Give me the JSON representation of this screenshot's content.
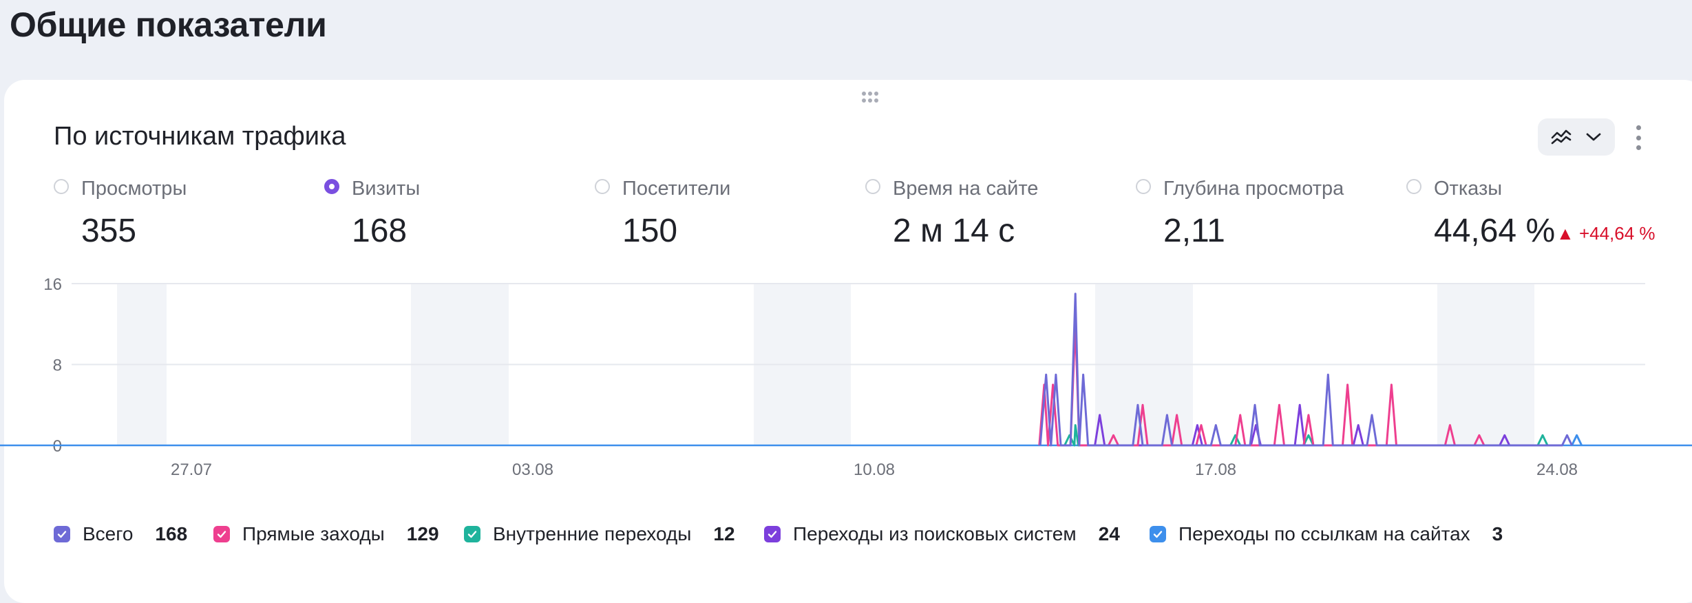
{
  "page": {
    "title": "Общие показатели"
  },
  "card": {
    "title": "По источникам трафика",
    "chart_type_icon": "area-lines-icon",
    "menu_icon": "more-vertical-icon"
  },
  "metrics": [
    {
      "label": "Просмотры",
      "value": "355",
      "selected": false
    },
    {
      "label": "Визиты",
      "value": "168",
      "selected": true
    },
    {
      "label": "Посетители",
      "value": "150",
      "selected": false
    },
    {
      "label": "Время на сайте",
      "value": "2 м 14 с",
      "selected": false
    },
    {
      "label": "Глубина просмотра",
      "value": "2,11",
      "selected": false
    },
    {
      "label": "Отказы",
      "value": "44,64 %",
      "selected": false,
      "delta": "▲ +44,64 %",
      "delta_color": "#d80f2a"
    }
  ],
  "legend": [
    {
      "label": "Всего",
      "value": "168",
      "color": "#6e6ad6"
    },
    {
      "label": "Прямые заходы",
      "value": "129",
      "color": "#ee3f8f"
    },
    {
      "label": "Внутренние переходы",
      "value": "12",
      "color": "#1fb39c"
    },
    {
      "label": "Переходы из поисковых систем",
      "value": "24",
      "color": "#7c3fdc"
    },
    {
      "label": "Переходы по ссылкам на сайтах",
      "value": "3",
      "color": "#3d8fec"
    }
  ],
  "chart_data": {
    "type": "line",
    "y_ticks": [
      "16",
      "8",
      "0"
    ],
    "ylim": [
      0,
      16
    ],
    "x_ticks": [
      "27.07",
      "03.08",
      "10.08",
      "17.08",
      "24.08"
    ],
    "weekend_shading": true,
    "series": [
      {
        "name": "Всего",
        "color": "#6e6ad6",
        "points": [
          [
            0.8,
            0
          ],
          [
            0.92,
            7
          ],
          [
            1.02,
            0
          ],
          [
            1.12,
            7
          ],
          [
            1.22,
            0
          ],
          [
            1.42,
            0
          ],
          [
            1.52,
            15
          ],
          [
            1.6,
            0
          ],
          [
            1.68,
            7
          ],
          [
            1.78,
            0
          ],
          [
            2.7,
            0
          ],
          [
            2.8,
            4
          ],
          [
            2.9,
            0
          ],
          [
            3.3,
            0
          ],
          [
            3.4,
            3
          ],
          [
            3.5,
            0
          ],
          [
            4.3,
            0
          ],
          [
            4.4,
            2
          ],
          [
            4.5,
            0
          ],
          [
            5.1,
            0
          ],
          [
            5.2,
            4
          ],
          [
            5.3,
            0
          ],
          [
            6.6,
            0
          ],
          [
            6.7,
            7
          ],
          [
            6.8,
            0
          ],
          [
            7.5,
            0
          ],
          [
            7.6,
            3
          ],
          [
            7.7,
            0
          ],
          [
            11.5,
            0
          ],
          [
            11.6,
            1
          ],
          [
            11.7,
            0
          ]
        ]
      },
      {
        "name": "Прямые заходы",
        "color": "#ee3f8f",
        "points": [
          [
            0.78,
            0
          ],
          [
            0.88,
            6
          ],
          [
            0.96,
            0
          ],
          [
            1.06,
            6
          ],
          [
            1.16,
            0
          ],
          [
            1.42,
            0
          ],
          [
            1.52,
            12
          ],
          [
            1.6,
            0
          ],
          [
            2.2,
            0
          ],
          [
            2.3,
            1
          ],
          [
            2.4,
            0
          ],
          [
            2.8,
            0
          ],
          [
            2.9,
            4
          ],
          [
            3.0,
            0
          ],
          [
            3.5,
            0
          ],
          [
            3.6,
            3
          ],
          [
            3.7,
            0
          ],
          [
            4.0,
            0
          ],
          [
            4.1,
            2
          ],
          [
            4.2,
            0
          ],
          [
            4.8,
            0
          ],
          [
            4.9,
            3
          ],
          [
            5.0,
            0
          ],
          [
            5.6,
            0
          ],
          [
            5.7,
            4
          ],
          [
            5.8,
            0
          ],
          [
            6.2,
            0
          ],
          [
            6.3,
            3
          ],
          [
            6.4,
            0
          ],
          [
            7.0,
            0
          ],
          [
            7.1,
            6
          ],
          [
            7.2,
            0
          ],
          [
            7.9,
            0
          ],
          [
            8.0,
            6
          ],
          [
            8.1,
            0
          ],
          [
            9.1,
            0
          ],
          [
            9.2,
            2
          ],
          [
            9.3,
            0
          ],
          [
            9.7,
            0
          ],
          [
            9.8,
            1
          ],
          [
            9.9,
            0
          ]
        ]
      },
      {
        "name": "Внутренние переходы",
        "color": "#1fb39c",
        "points": [
          [
            1.3,
            0
          ],
          [
            1.4,
            1
          ],
          [
            1.5,
            0
          ],
          [
            1.52,
            2
          ],
          [
            1.58,
            0
          ],
          [
            4.7,
            0
          ],
          [
            4.8,
            1
          ],
          [
            4.9,
            0
          ],
          [
            6.2,
            0
          ],
          [
            6.3,
            1
          ],
          [
            6.4,
            0
          ],
          [
            11.0,
            0
          ],
          [
            11.1,
            1
          ],
          [
            11.2,
            0
          ]
        ]
      },
      {
        "name": "Переходы из поисковых систем",
        "color": "#7c3fdc",
        "points": [
          [
            1.92,
            0
          ],
          [
            2.02,
            3
          ],
          [
            2.12,
            0
          ],
          [
            3.92,
            0
          ],
          [
            4.02,
            2
          ],
          [
            4.12,
            0
          ],
          [
            5.12,
            0
          ],
          [
            5.22,
            2
          ],
          [
            5.32,
            0
          ],
          [
            6.02,
            0
          ],
          [
            6.12,
            4
          ],
          [
            6.22,
            0
          ],
          [
            7.22,
            0
          ],
          [
            7.32,
            2
          ],
          [
            7.42,
            0
          ],
          [
            10.22,
            0
          ],
          [
            10.32,
            1
          ],
          [
            10.42,
            0
          ]
        ]
      },
      {
        "name": "Переходы по ссылкам на сайтах",
        "color": "#3d8fec",
        "points": [
          [
            11.7,
            0
          ],
          [
            11.8,
            1
          ],
          [
            11.9,
            0
          ]
        ]
      }
    ]
  }
}
